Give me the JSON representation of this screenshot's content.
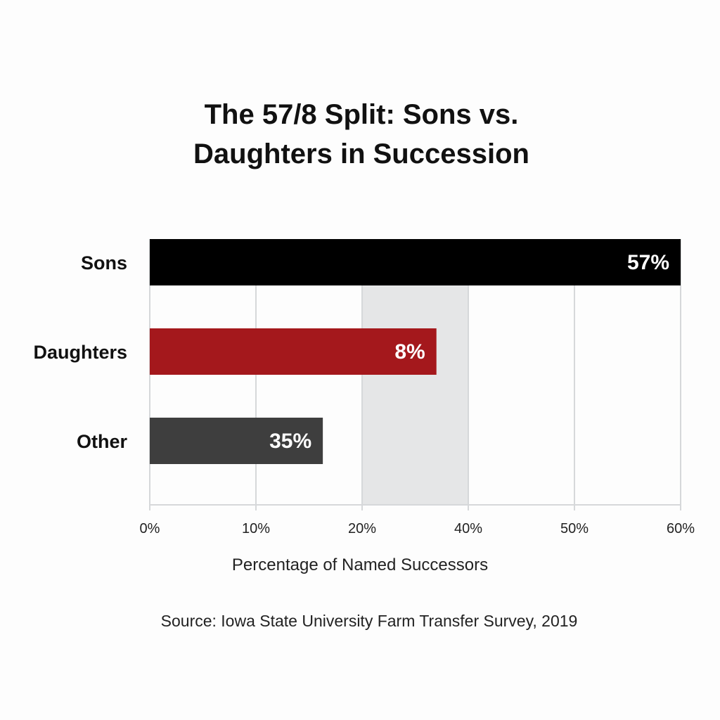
{
  "chart_data": {
    "type": "bar",
    "orientation": "horizontal",
    "title_lines": [
      "The 57/8 Split: Sons vs.",
      "Daughters in Succession"
    ],
    "categories": [
      "Sons",
      "Daughters",
      "Other"
    ],
    "values": [
      57,
      8,
      35
    ],
    "value_labels": [
      "57%",
      "8%",
      "35%"
    ],
    "drawn_extent": [
      60,
      34,
      16.3
    ],
    "colors": [
      "#000000",
      "#a4181c",
      "#3e3e3e"
    ],
    "xticks": [
      0,
      10,
      20,
      40,
      50,
      60
    ],
    "xtick_labels": [
      "0%",
      "10%",
      "20%",
      "40%",
      "50%",
      "60%"
    ],
    "highlight_band": [
      20,
      40
    ],
    "highlight_color": "#e5e6e7",
    "xlabel": "Percentage of Named Successors",
    "ylabel": "",
    "xlim": [
      0,
      60
    ],
    "grid": true,
    "source": "Source: Iowa State University Farm Transfer Survey, 2019"
  }
}
